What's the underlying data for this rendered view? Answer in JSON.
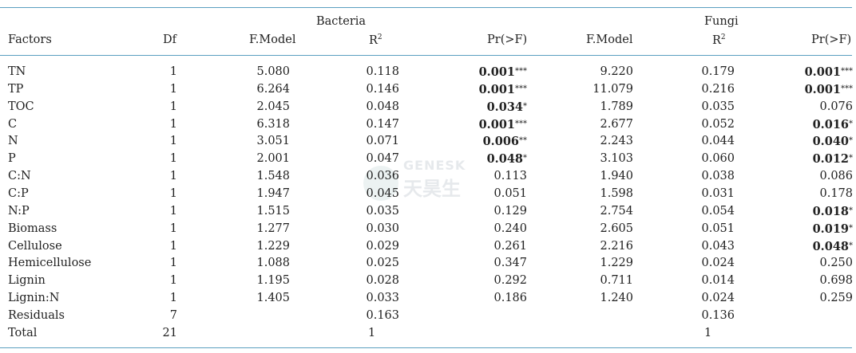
{
  "header": {
    "group_bacteria": "Bacteria",
    "group_fungi": "Fungi",
    "col_factors": "Factors",
    "col_df": "Df",
    "col_fmodel": "F.Model",
    "col_r2": "R",
    "col_r2_sup": "2",
    "col_pr": "Pr(>F)"
  },
  "watermark": {
    "line1": "GENESK",
    "line2": "天昊生"
  },
  "rows": [
    {
      "factor": "TN",
      "df": "1",
      "b_f": "5.080",
      "b_r2": "0.118",
      "b_p": "0.001",
      "b_sig": "***",
      "b_bold": true,
      "f_f": "9.220",
      "f_r2": "0.179",
      "f_p": "0.001",
      "f_sig": "***",
      "f_bold": true
    },
    {
      "factor": "TP",
      "df": "1",
      "b_f": "6.264",
      "b_r2": "0.146",
      "b_p": "0.001",
      "b_sig": "***",
      "b_bold": true,
      "f_f": "11.079",
      "f_r2": "0.216",
      "f_p": "0.001",
      "f_sig": "***",
      "f_bold": true
    },
    {
      "factor": "TOC",
      "df": "1",
      "b_f": "2.045",
      "b_r2": "0.048",
      "b_p": "0.034",
      "b_sig": "*",
      "b_bold": true,
      "f_f": "1.789",
      "f_r2": "0.035",
      "f_p": "0.076",
      "f_sig": "",
      "f_bold": false
    },
    {
      "factor": "C",
      "df": "1",
      "b_f": "6.318",
      "b_r2": "0.147",
      "b_p": "0.001",
      "b_sig": "***",
      "b_bold": true,
      "f_f": "2.677",
      "f_r2": "0.052",
      "f_p": "0.016",
      "f_sig": "*",
      "f_bold": true
    },
    {
      "factor": "N",
      "df": "1",
      "b_f": "3.051",
      "b_r2": "0.071",
      "b_p": "0.006",
      "b_sig": "**",
      "b_bold": true,
      "f_f": "2.243",
      "f_r2": "0.044",
      "f_p": "0.040",
      "f_sig": "*",
      "f_bold": true
    },
    {
      "factor": "P",
      "df": "1",
      "b_f": "2.001",
      "b_r2": "0.047",
      "b_p": "0.048",
      "b_sig": "*",
      "b_bold": true,
      "f_f": "3.103",
      "f_r2": "0.060",
      "f_p": "0.012",
      "f_sig": "*",
      "f_bold": true
    },
    {
      "factor": "C:N",
      "df": "1",
      "b_f": "1.548",
      "b_r2": "0.036",
      "b_p": "0.113",
      "b_sig": "",
      "b_bold": false,
      "f_f": "1.940",
      "f_r2": "0.038",
      "f_p": "0.086",
      "f_sig": "",
      "f_bold": false
    },
    {
      "factor": "C:P",
      "df": "1",
      "b_f": "1.947",
      "b_r2": "0.045",
      "b_p": "0.051",
      "b_sig": "",
      "b_bold": false,
      "f_f": "1.598",
      "f_r2": "0.031",
      "f_p": "0.178",
      "f_sig": "",
      "f_bold": false
    },
    {
      "factor": "N:P",
      "df": "1",
      "b_f": "1.515",
      "b_r2": "0.035",
      "b_p": "0.129",
      "b_sig": "",
      "b_bold": false,
      "f_f": "2.754",
      "f_r2": "0.054",
      "f_p": "0.018",
      "f_sig": "*",
      "f_bold": true
    },
    {
      "factor": "Biomass",
      "df": "1",
      "b_f": "1.277",
      "b_r2": "0.030",
      "b_p": "0.240",
      "b_sig": "",
      "b_bold": false,
      "f_f": "2.605",
      "f_r2": "0.051",
      "f_p": "0.019",
      "f_sig": "*",
      "f_bold": true
    },
    {
      "factor": "Cellulose",
      "df": "1",
      "b_f": "1.229",
      "b_r2": "0.029",
      "b_p": "0.261",
      "b_sig": "",
      "b_bold": false,
      "f_f": "2.216",
      "f_r2": "0.043",
      "f_p": "0.048",
      "f_sig": "*",
      "f_bold": true
    },
    {
      "factor": "Hemicellulose",
      "df": "1",
      "b_f": "1.088",
      "b_r2": "0.025",
      "b_p": "0.347",
      "b_sig": "",
      "b_bold": false,
      "f_f": "1.229",
      "f_r2": "0.024",
      "f_p": "0.250",
      "f_sig": "",
      "f_bold": false
    },
    {
      "factor": "Lignin",
      "df": "1",
      "b_f": "1.195",
      "b_r2": "0.028",
      "b_p": "0.292",
      "b_sig": "",
      "b_bold": false,
      "f_f": "0.711",
      "f_r2": "0.014",
      "f_p": "0.698",
      "f_sig": "",
      "f_bold": false
    },
    {
      "factor": "Lignin:N",
      "df": "1",
      "b_f": "1.405",
      "b_r2": "0.033",
      "b_p": "0.186",
      "b_sig": "",
      "b_bold": false,
      "f_f": "1.240",
      "f_r2": "0.024",
      "f_p": "0.259",
      "f_sig": "",
      "f_bold": false
    },
    {
      "factor": "Residuals",
      "df": "7",
      "b_f": "",
      "b_r2": "0.163",
      "b_p": "",
      "b_sig": "",
      "b_bold": false,
      "f_f": "",
      "f_r2": "0.136",
      "f_p": "",
      "f_sig": "",
      "f_bold": false
    },
    {
      "factor": "Total",
      "df": "21",
      "b_f": "",
      "b_r2": "1",
      "b_p": "",
      "b_sig": "",
      "b_bold": false,
      "f_f": "",
      "f_r2": "1",
      "f_p": "",
      "f_sig": "",
      "f_bold": false
    }
  ]
}
